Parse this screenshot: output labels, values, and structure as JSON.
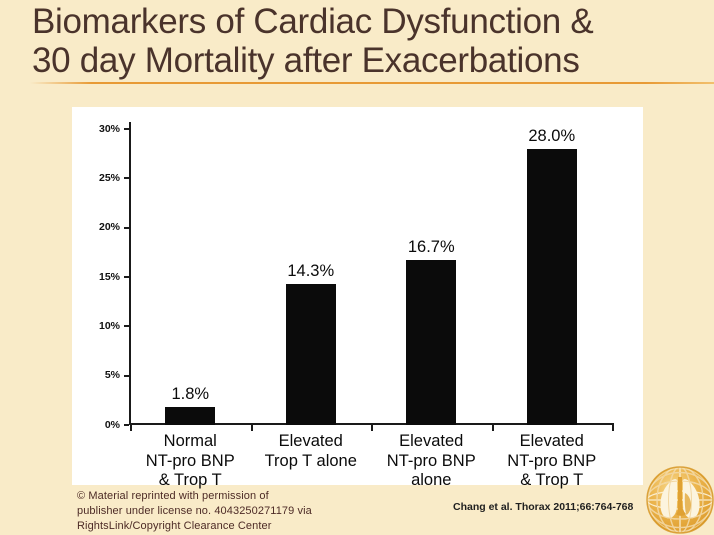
{
  "slide": {
    "title_line1": "Biomarkers of Cardiac Dysfunction &",
    "title_line2": "30 day Mortality after Exacerbations"
  },
  "chart_data": {
    "type": "bar",
    "title": "",
    "xlabel": "",
    "ylabel": "",
    "categories": [
      "Normal\nNT-pro BNP\n& Trop T",
      "Elevated\nTrop T alone",
      "Elevated\nNT-pro BNP\nalone",
      "Elevated\nNT-pro BNP\n& Trop T"
    ],
    "values": [
      1.8,
      14.3,
      16.7,
      28.0
    ],
    "value_labels": [
      "1.8%",
      "14.3%",
      "16.7%",
      "28.0%"
    ],
    "y_ticks": [
      0,
      5,
      10,
      15,
      20,
      25,
      30
    ],
    "y_tick_labels": [
      "0%",
      "5%",
      "10%",
      "15%",
      "20%",
      "25%",
      "30%"
    ],
    "ylim": [
      0,
      30
    ],
    "grid": false,
    "legend": false,
    "bar_color": "#0b0b0b"
  },
  "footer": {
    "copyright_line1": "© Material reprinted with permission of",
    "copyright_line2": "publisher under license no. 4043250271179   via",
    "copyright_line3": "RightsLink/Copyright Clearance Center",
    "citation": "Chang et al. Thorax 2011;66:764-768"
  },
  "logo": {
    "name": "lung-globe-logo"
  },
  "colors": {
    "background": "#F9EBC8",
    "title_text": "#4A332B",
    "underline_gold": "#E89A35",
    "copyright_text": "#4D2B26",
    "citation_text": "#1F1F1F",
    "bar": "#0B0B0B",
    "panel": "#FFFFFF",
    "logo_gold": "#DFA133"
  }
}
